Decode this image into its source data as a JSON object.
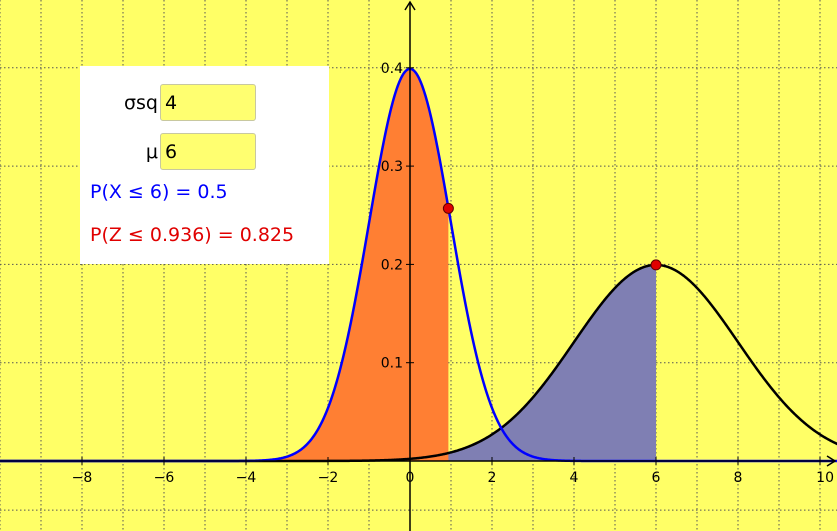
{
  "controls": {
    "sigma_sq_label": "σsq",
    "sigma_sq_value": "4",
    "mu_label": "μ",
    "mu_value": "6"
  },
  "results": {
    "p_x_text": "P(X ≤ 6) = 0.5",
    "p_z_text": "P(Z ≤ 0.936) = 0.825"
  },
  "colors": {
    "background": "#ffff66",
    "standard_curve": "#0000ff",
    "standard_fill": "#ff7f33",
    "general_curve": "#000000",
    "general_fill": "#7f7fb3",
    "point": "#e00000",
    "p_x_text": "#0000ff",
    "p_z_text": "#e00000"
  },
  "chart_data": {
    "type": "area",
    "title": "",
    "xlabel": "",
    "ylabel": "",
    "xlim": [
      -10,
      10
    ],
    "ylim": [
      0,
      0.4
    ],
    "x_ticks": [
      -8,
      -6,
      -4,
      -2,
      0,
      2,
      4,
      6,
      8,
      10
    ],
    "x_tick_labels": [
      "−8",
      "−6",
      "−4",
      "−2",
      "0",
      "2",
      "4",
      "6",
      "8",
      "10"
    ],
    "y_ticks": [
      0.1,
      0.2,
      0.3,
      0.4
    ],
    "y_tick_labels": [
      "0.1",
      "0.2",
      "0.3",
      "0.4"
    ],
    "grid": true,
    "series": [
      {
        "mean": 0,
        "sd": 1,
        "shaded_to": 0.936,
        "marker_x": 0.936,
        "marker_y": 0.257
      },
      {
        "mean": 6,
        "sd": 2,
        "shaded_to": 6,
        "marker_x": 6,
        "marker_y": 0.1995
      }
    ]
  }
}
